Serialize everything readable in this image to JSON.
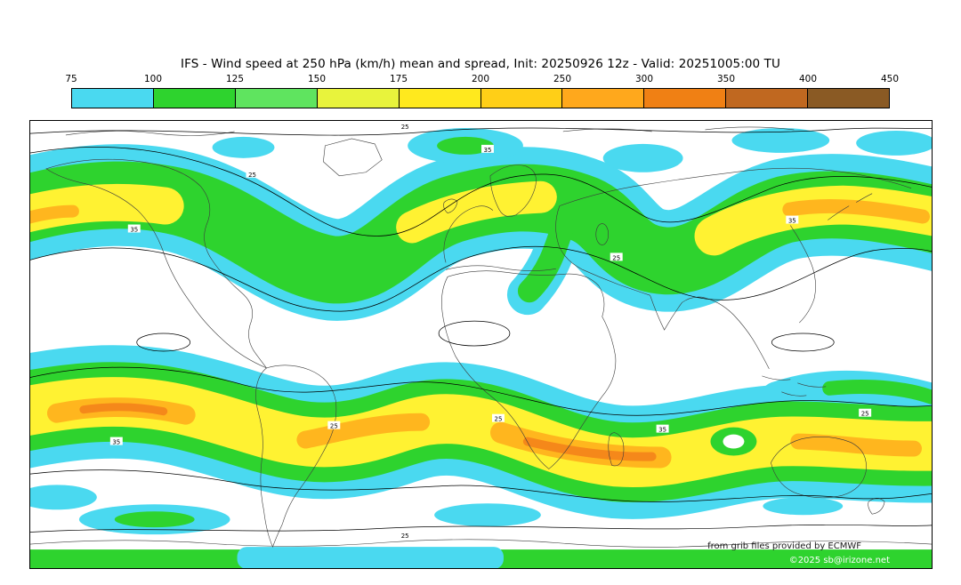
{
  "header": {
    "title": "IFS - Wind speed at 250 hPa (km/h) mean and spread, Init: 20250926 12z - Valid: 20251005:00 TU"
  },
  "colorbar": {
    "ticks": [
      "75",
      "100",
      "125",
      "150",
      "175",
      "200",
      "250",
      "300",
      "350",
      "400",
      "450"
    ],
    "colors": [
      "#4ad9f0",
      "#2ed32e",
      "#5fe45f",
      "#e8f33c",
      "#ffe91e",
      "#ffcf17",
      "#ffa81c",
      "#f08014",
      "#c06820",
      "#8a5a24"
    ]
  },
  "map": {
    "contour_label_25": "25",
    "contour_label_35": "35",
    "band_colors": {
      "cyan": "#4ad9f0",
      "green": "#2ed32e",
      "yellow": "#fff232",
      "orange": "#ffb61e",
      "deep_orange": "#f5881a"
    }
  },
  "footer": {
    "attribution": "from grib files provided by ECMWF",
    "copyright": "©2025 sb@irizone.net"
  },
  "chart_data": {
    "type": "heatmap",
    "title": "IFS - Wind speed at 250 hPa (km/h) mean and spread",
    "init_label": "Init: 20250926 12z",
    "valid_label": "Valid: 20251005:00 TU",
    "units": "km/h",
    "colorbar_ticks": [
      75,
      100,
      125,
      150,
      175,
      200,
      250,
      300,
      350,
      400,
      450
    ],
    "spread_contour_levels": [
      25,
      35
    ],
    "legend_position": "top"
  }
}
